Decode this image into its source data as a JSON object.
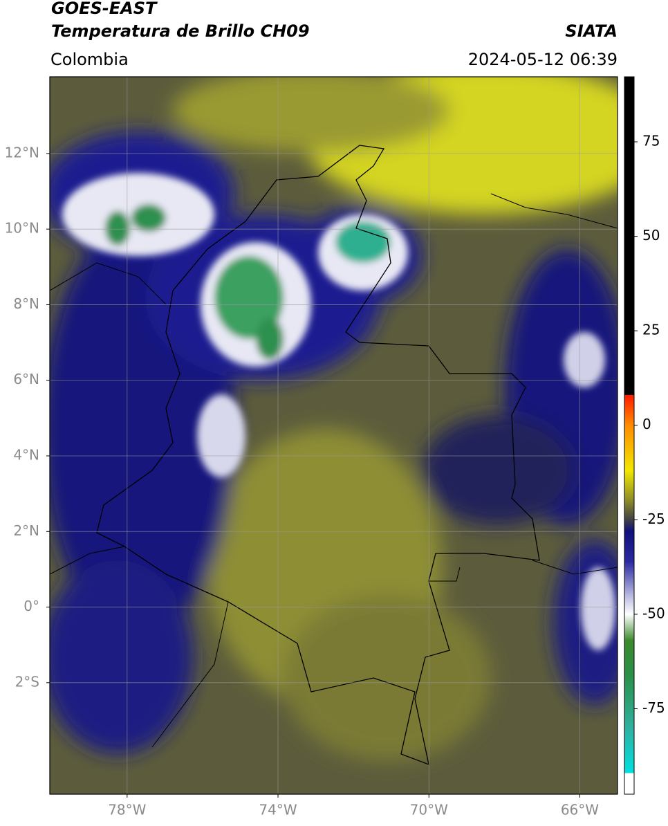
{
  "header": {
    "title": "GOES-EAST",
    "subtitle": "Temperatura de Brillo CH09",
    "source": "SIATA",
    "region": "Colombia",
    "datetime": "2024-05-12 06:39"
  },
  "map": {
    "xlim": [
      -80.05,
      -65.0
    ],
    "ylim": [
      -4.95,
      14.03
    ],
    "grid": true,
    "xticks": [
      {
        "value": -78,
        "label": "78°W"
      },
      {
        "value": -74,
        "label": "74°W"
      },
      {
        "value": -70,
        "label": "70°W"
      },
      {
        "value": -66,
        "label": "66°W"
      }
    ],
    "yticks": [
      {
        "value": 12,
        "label": "12°N"
      },
      {
        "value": 10,
        "label": "10°N"
      },
      {
        "value": 8,
        "label": "8°N"
      },
      {
        "value": 6,
        "label": "6°N"
      },
      {
        "value": 4,
        "label": "4°N"
      },
      {
        "value": 2,
        "label": "2°N"
      },
      {
        "value": 0,
        "label": "0°"
      },
      {
        "value": -2,
        "label": "2°S"
      }
    ]
  },
  "colorbar": {
    "lim": [
      -97.6,
      92.2
    ],
    "ticks": [
      75,
      50,
      25,
      0,
      -25,
      -50,
      -75
    ],
    "stops": [
      {
        "value": 92.2,
        "color": "#000000"
      },
      {
        "value": 8,
        "color": "#000000"
      },
      {
        "value": 8,
        "color": "#ff1a00"
      },
      {
        "value": 0,
        "color": "#ff8c00"
      },
      {
        "value": -12,
        "color": "#f0e800"
      },
      {
        "value": -20,
        "color": "#8a8a28"
      },
      {
        "value": -25,
        "color": "#404048"
      },
      {
        "value": -28,
        "color": "#10107a"
      },
      {
        "value": -36,
        "color": "#2a2aa0"
      },
      {
        "value": -45,
        "color": "#b8b8e0"
      },
      {
        "value": -50,
        "color": "#ffffff"
      },
      {
        "value": -57,
        "color": "#3c8a2c"
      },
      {
        "value": -66,
        "color": "#2a9048"
      },
      {
        "value": -80,
        "color": "#30b0a0"
      },
      {
        "value": -92,
        "color": "#00e0e0"
      },
      {
        "value": -92,
        "color": "#ffffff"
      },
      {
        "value": -97.6,
        "color": "#ffffff"
      }
    ]
  }
}
